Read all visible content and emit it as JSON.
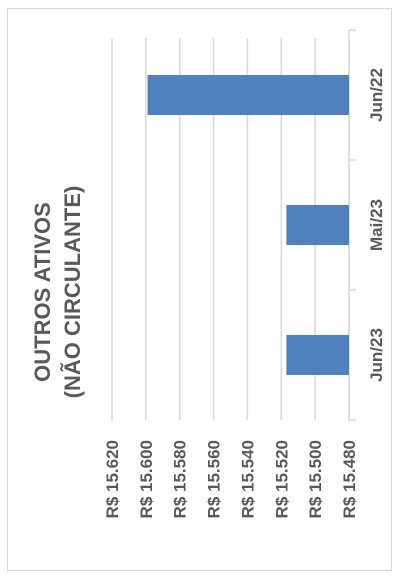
{
  "chart_data": {
    "type": "bar",
    "title_lines": [
      "OUTROS ATIVOS",
      "(NÃO CIRCULANTE)"
    ],
    "categories": [
      "Jun/22",
      "Mai/23",
      "Jun/23"
    ],
    "values": [
      15599,
      15517,
      15517
    ],
    "ylim": [
      15480,
      15620
    ],
    "yticks": [
      15480,
      15500,
      15520,
      15540,
      15560,
      15580,
      15600,
      15620
    ],
    "ytick_labels": [
      "R$ 15.480",
      "R$ 15.500",
      "R$ 15.520",
      "R$ 15.540",
      "R$ 15.560",
      "R$ 15.580",
      "R$ 15.600",
      "R$ 15.620"
    ],
    "xlabel": "",
    "ylabel": "",
    "grid": true,
    "legend": "none",
    "bar_color": "#4f81bd",
    "grid_color": "#d9d9d9"
  }
}
